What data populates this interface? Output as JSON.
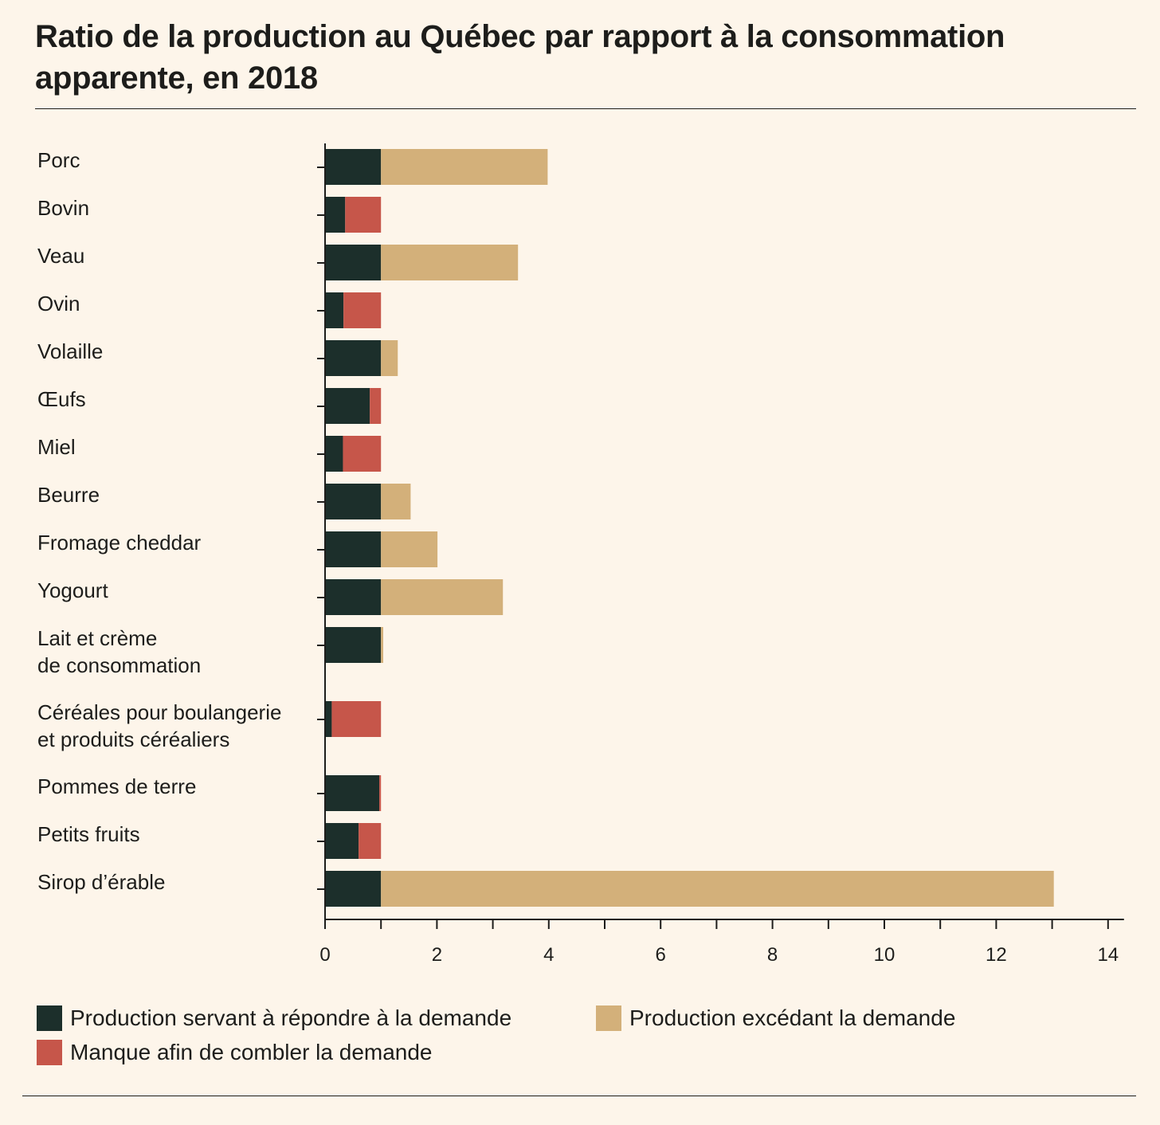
{
  "title": "Ratio de la production au Québec par rapport à la consommation apparente, en 2018",
  "colors": {
    "production": "#1c2f2b",
    "excedent": "#d3b07a",
    "manque": "#c6564a",
    "axis": "#1d1d1b"
  },
  "legend": [
    {
      "label": "Production servant à répondre à la demande",
      "color": "#1c2f2b"
    },
    {
      "label": "Production excédant la demande",
      "color": "#d3b07a"
    },
    {
      "label": "Manque afin de combler la demande",
      "color": "#c6564a"
    }
  ],
  "chart_data": {
    "type": "bar",
    "orientation": "horizontal",
    "stacked": true,
    "title": "Ratio de la production au Québec par rapport à la consommation apparente, en 2018",
    "xlabel": "",
    "ylabel": "",
    "xlim": [
      0,
      14
    ],
    "xticks": [
      0,
      2,
      4,
      6,
      8,
      10,
      12,
      14
    ],
    "categories": [
      [
        "Porc"
      ],
      [
        "Bovin"
      ],
      [
        "Veau"
      ],
      [
        "Ovin"
      ],
      [
        "Volaille"
      ],
      [
        "Œufs"
      ],
      [
        "Miel"
      ],
      [
        "Beurre"
      ],
      [
        "Fromage cheddar"
      ],
      [
        "Yogourt"
      ],
      [
        "Lait et crème",
        "de consommation"
      ],
      [
        "Céréales pour boulangerie",
        "et produits céréaliers"
      ],
      [
        "Pommes de terre"
      ],
      [
        "Petits fruits"
      ],
      [
        "Sirop d’érable"
      ]
    ],
    "series": [
      {
        "name": "Production servant à répondre à la demande",
        "values": [
          1,
          0.36,
          1,
          0.33,
          1,
          0.8,
          0.32,
          1,
          1,
          1,
          1,
          0.12,
          0.97,
          0.6,
          1
        ]
      },
      {
        "name": "Production excédant la demande",
        "values": [
          2.98,
          0,
          2.45,
          0,
          0.3,
          0,
          0,
          0.53,
          1.01,
          2.18,
          0.04,
          0,
          0,
          0,
          12.03
        ]
      },
      {
        "name": "Manque afin de combler la demande",
        "values": [
          0,
          0.64,
          0,
          0.67,
          0,
          0.2,
          0.68,
          0,
          0,
          0,
          0,
          0.88,
          0.03,
          0.4,
          0
        ]
      }
    ],
    "grid": false,
    "legend_position": "bottom"
  }
}
